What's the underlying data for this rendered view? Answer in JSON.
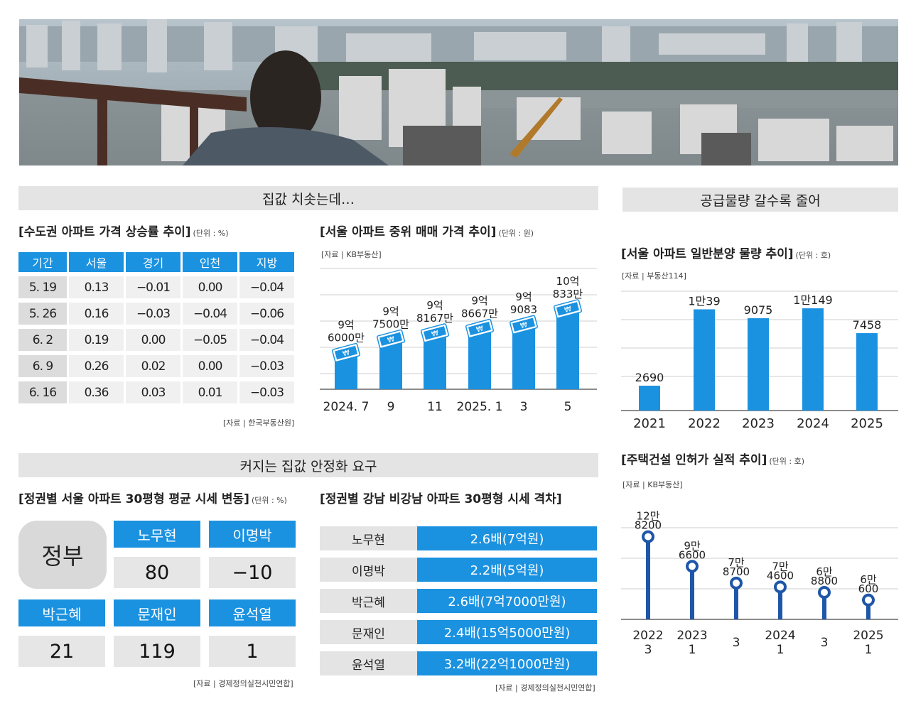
{
  "section_left_top": "집값 치솟는데…",
  "section_right_top": "공급물량 갈수록 줄어",
  "section_left_bottom": "커지는 집값 안정화 요구",
  "chart_data": [
    {
      "type": "table",
      "title": "[수도권  아파트 가격 상승률 추이]",
      "unit": "(단위 : %)",
      "columns": [
        "기간",
        "서울",
        "경기",
        "인천",
        "지방"
      ],
      "rows": [
        [
          "5. 19",
          "0.13",
          "−0.01",
          "0.00",
          "−0.04"
        ],
        [
          "5. 26",
          "0.16",
          "−0.03",
          "−0.04",
          "−0.06"
        ],
        [
          "6. 2",
          "0.19",
          "0.00",
          "−0.05",
          "−0.04"
        ],
        [
          "6. 9",
          "0.26",
          "0.02",
          "0.00",
          "−0.03"
        ],
        [
          "6. 16",
          "0.36",
          "0.03",
          "0.01",
          "−0.03"
        ]
      ],
      "source": "[자료 | 한국부동산원]"
    },
    {
      "type": "bar",
      "title": "[서울 아파트 중위 매매 가격 추이]",
      "unit": "(단위 : 원)",
      "source": "[자료 | KB부동산]",
      "categories": [
        "2024. 7",
        "9",
        "11",
        "2025. 1",
        "3",
        "5"
      ],
      "values": [
        96000,
        97500,
        98167,
        98667,
        99083,
        100833
      ],
      "value_labels": [
        [
          "9억",
          "6000만"
        ],
        [
          "9억",
          "7500만"
        ],
        [
          "9억",
          "8167만"
        ],
        [
          "9억",
          "8667만"
        ],
        [
          "9억",
          "9083"
        ],
        [
          "10억",
          "833만"
        ]
      ],
      "value_unit": "만원"
    },
    {
      "type": "bar",
      "title": "[서울 아파트 일반분양 물량 추이]",
      "unit": "(단위 : 호)",
      "source": "[자료 | 부동산114]",
      "categories": [
        "2021",
        "2022",
        "2023",
        "2024",
        "2025"
      ],
      "values": [
        2690,
        10039,
        9075,
        10149,
        7458
      ],
      "value_labels": [
        "2690",
        "1만39",
        "9075",
        "1만149",
        "7458"
      ],
      "ylim": [
        0,
        12000
      ]
    },
    {
      "type": "scatter",
      "title": "[주택건설 인허가 실적 추이]",
      "unit": "(단위 : 호)",
      "source": "[자료 | KB부동산]",
      "categories": [
        [
          "2022",
          "3"
        ],
        [
          "2023",
          "1"
        ],
        [
          "",
          "3"
        ],
        [
          "2024",
          "1"
        ],
        [
          "",
          "3"
        ],
        [
          "2025",
          "1"
        ]
      ],
      "values": [
        128200,
        96600,
        78700,
        74600,
        68800,
        60600
      ],
      "value_labels": [
        [
          "12만",
          "8200"
        ],
        [
          "9만",
          "6600"
        ],
        [
          "7만",
          "8700"
        ],
        [
          "7만",
          "4600"
        ],
        [
          "6만",
          "8800"
        ],
        [
          "6만",
          "600"
        ]
      ]
    },
    {
      "type": "table",
      "title": "[정권별 서울 아파트 30평형 평균 시세 변동]",
      "unit": "(단위 : %)",
      "label": "정부",
      "rows": [
        {
          "name": "노무현",
          "value": "80"
        },
        {
          "name": "이명박",
          "value": "−10"
        },
        {
          "name": "박근혜",
          "value": "21"
        },
        {
          "name": "문재인",
          "value": "119"
        },
        {
          "name": "윤석열",
          "value": "1"
        }
      ],
      "source": "[자료 | 경제정의실천시민연합]"
    },
    {
      "type": "table",
      "title": "[정권별 강남 비강남 아파트 30평형 시세 격차]",
      "rows": [
        {
          "name": "노무현",
          "value": "2.6배(7억원)"
        },
        {
          "name": "이명박",
          "value": "2.2배(5억원)"
        },
        {
          "name": "박근혜",
          "value": "2.6배(7억7000만원)"
        },
        {
          "name": "문재인",
          "value": "2.4배(15억5000만원)"
        },
        {
          "name": "윤석열",
          "value": "3.2배(22억1000만원)"
        }
      ],
      "source": "[자료 | 경제정의실천시민연합]"
    }
  ],
  "colors": {
    "accent": "#1b92e0",
    "stick": "#1f56a8",
    "header_gray": "#e4e4e4"
  }
}
